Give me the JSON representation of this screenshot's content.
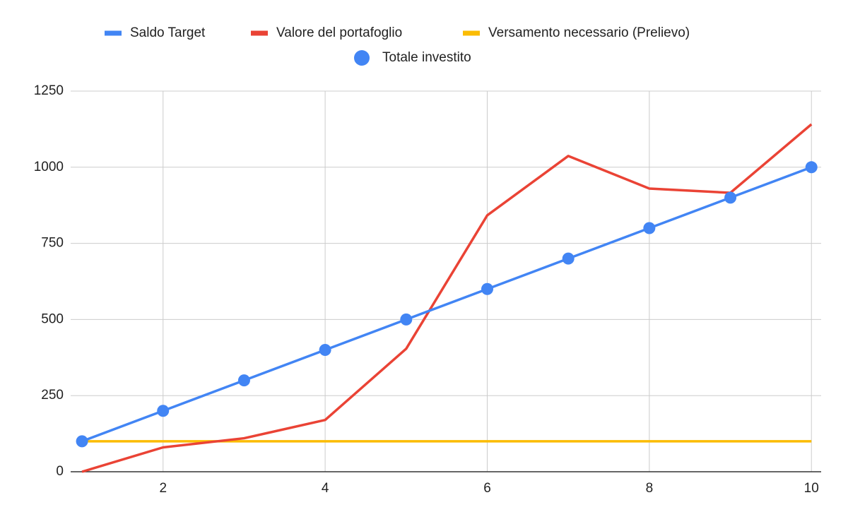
{
  "chart_data": {
    "type": "line",
    "x": [
      1,
      2,
      3,
      4,
      5,
      6,
      7,
      8,
      9,
      10
    ],
    "series": [
      {
        "name": "Saldo Target",
        "color": "#4285f4",
        "mode": "line",
        "values": [
          100,
          200,
          300,
          400,
          500,
          600,
          700,
          800,
          900,
          1000
        ]
      },
      {
        "name": "Valore del portafoglio",
        "color": "#ea4335",
        "mode": "line",
        "values": [
          0,
          80,
          110,
          170,
          404,
          842,
          1037,
          930,
          916,
          1141
        ]
      },
      {
        "name": "Versamento necessario (Prelievo)",
        "color": "#fbbc04",
        "mode": "line",
        "values": [
          100,
          100,
          100,
          100,
          100,
          100,
          100,
          100,
          100,
          100
        ]
      },
      {
        "name": "Totale investito",
        "color": "#4285f4",
        "mode": "markers",
        "values": [
          100,
          200,
          300,
          400,
          500,
          600,
          700,
          800,
          900,
          1000
        ]
      }
    ],
    "xlim": [
      0.86,
      10.12
    ],
    "xticks": [
      2,
      4,
      6,
      8,
      10
    ],
    "ylim": [
      0,
      1250
    ],
    "yticks": [
      0,
      250,
      500,
      750,
      1000,
      1250
    ],
    "grid": true,
    "legend": "top"
  }
}
